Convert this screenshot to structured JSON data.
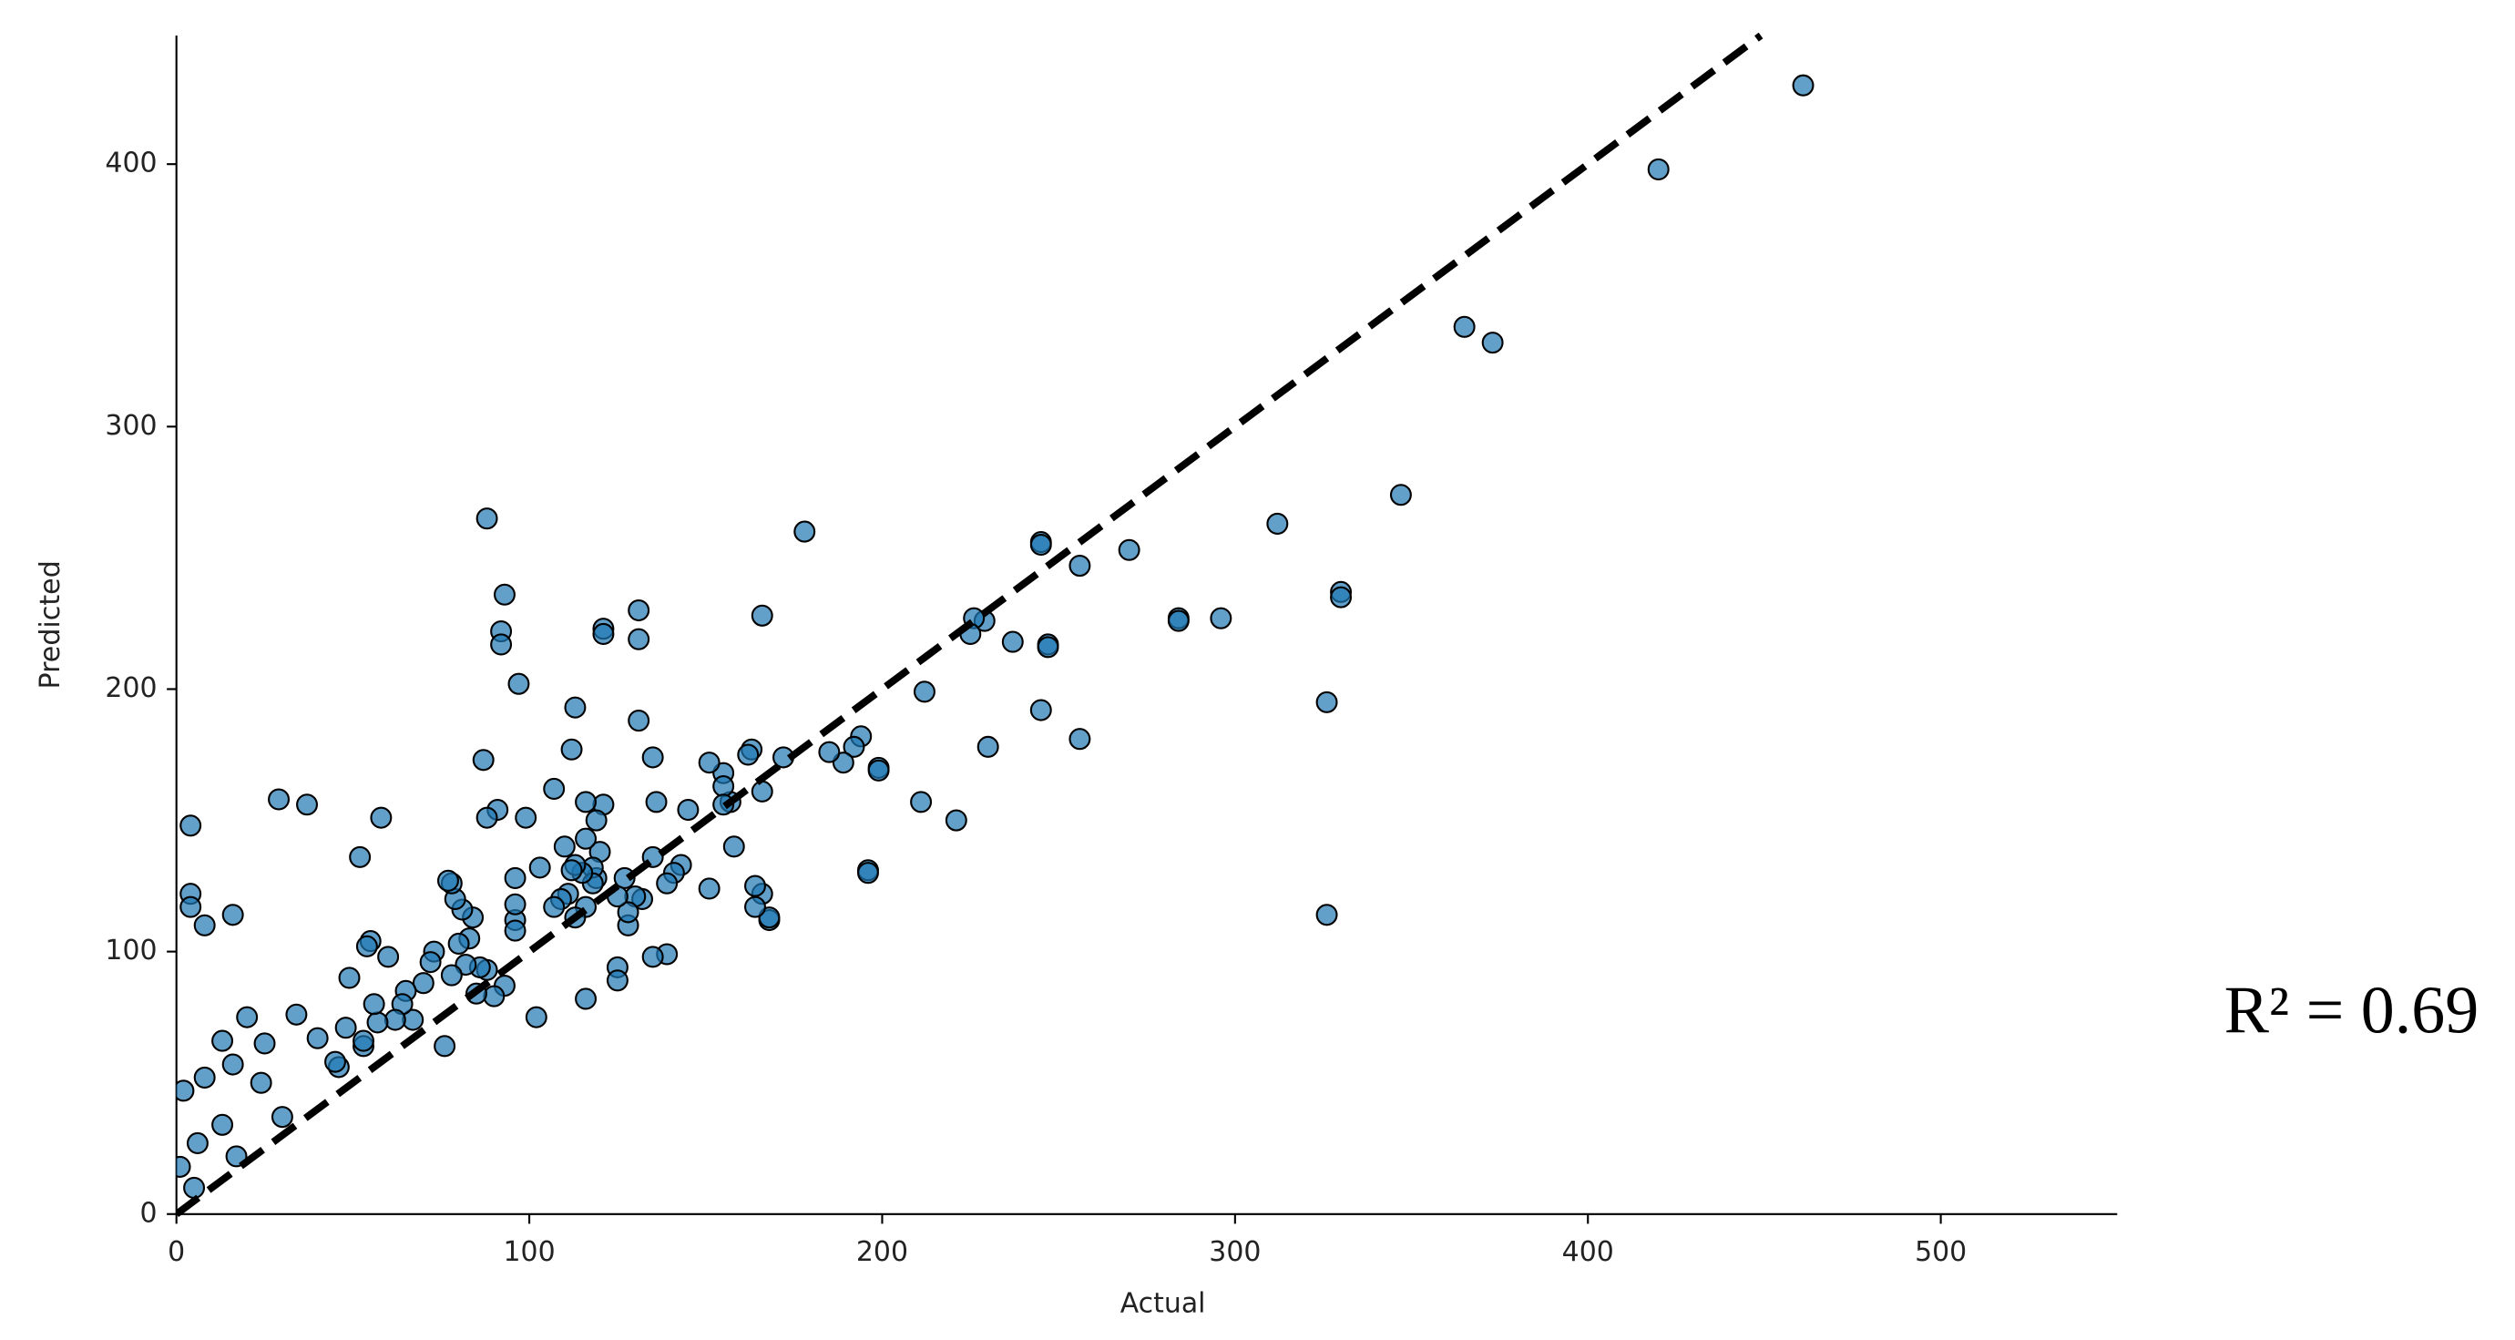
{
  "chart_data": {
    "type": "scatter",
    "x_label": "Actual",
    "y_label": "Predicted",
    "annotation": "R² = 0.69",
    "color": "#1f77b4",
    "edge_color": "#000000",
    "diagonal_line": true,
    "grid": false,
    "xlim": [
      0,
      550
    ],
    "ylim": [
      0,
      449
    ],
    "xticks": [
      0,
      100,
      200,
      300,
      400,
      500
    ],
    "yticks": [
      0,
      100,
      200,
      300,
      400
    ],
    "x": [
      461,
      420,
      365,
      373,
      347,
      312,
      330,
      330,
      326,
      326,
      296,
      284,
      284,
      270,
      256,
      256,
      245,
      245,
      247,
      247,
      245,
      237,
      229,
      226,
      225,
      230,
      212,
      211,
      221,
      199,
      199,
      196,
      196,
      194,
      192,
      189,
      185,
      178,
      172,
      166,
      166,
      166,
      168,
      168,
      164,
      164,
      163,
      162,
      158,
      157,
      155,
      155,
      155,
      151,
      151,
      145,
      143,
      141,
      139,
      139,
      135,
      135,
      136,
      135,
      131,
      131,
      131,
      132,
      130,
      128,
      128,
      127,
      125,
      125,
      125,
      121,
      121,
      121,
      120,
      119,
      119,
      118,
      118,
      116,
      116,
      116,
      115,
      116,
      113,
      112,
      113,
      112,
      113,
      111,
      110,
      109,
      107,
      107,
      103,
      102,
      99,
      97,
      96,
      96,
      96,
      96,
      93,
      92,
      92,
      93,
      91,
      90,
      88,
      87,
      88,
      88,
      86,
      85,
      84,
      83,
      82,
      81,
      80,
      79,
      78,
      77,
      78,
      76,
      73,
      72,
      70,
      67,
      65,
      64,
      62,
      60,
      58,
      57,
      56,
      55,
      54,
      53,
      53,
      52,
      49,
      48,
      46,
      45,
      40,
      37,
      34,
      30,
      29,
      25,
      24,
      20,
      17,
      16,
      16,
      13,
      13,
      8,
      8,
      6,
      4,
      4,
      4,
      5,
      2,
      1
    ],
    "values": [
      430,
      398,
      338,
      332,
      274,
      263,
      237,
      235,
      195,
      114,
      227,
      227,
      226,
      253,
      247,
      181,
      256,
      255,
      217,
      216,
      192,
      218,
      226,
      227,
      221,
      178,
      199,
      157,
      150,
      170,
      169,
      131,
      130,
      182,
      178,
      172,
      176,
      260,
      174,
      228,
      161,
      122,
      112,
      113,
      125,
      117,
      177,
      175,
      140,
      157,
      168,
      163,
      156,
      172,
      124,
      154,
      133,
      130,
      126,
      99,
      98,
      136,
      157,
      174,
      230,
      219,
      188,
      120,
      121,
      110,
      115,
      128,
      121,
      94,
      89,
      223,
      221,
      156,
      138,
      128,
      150,
      132,
      126,
      143,
      157,
      117,
      130,
      82,
      193,
      177,
      133,
      131,
      113,
      122,
      140,
      120,
      162,
      117,
      132,
      75,
      151,
      202,
      128,
      112,
      108,
      118,
      236,
      222,
      217,
      87,
      154,
      83,
      265,
      173,
      151,
      93,
      94,
      84,
      113,
      105,
      95,
      116,
      103,
      120,
      126,
      127,
      91,
      64,
      100,
      96,
      88,
      74,
      85,
      80,
      74,
      98,
      151,
      73,
      80,
      104,
      102,
      64,
      66,
      136,
      90,
      71,
      56,
      58,
      67,
      156,
      76,
      37,
      158,
      65,
      50,
      75,
      22,
      57,
      114,
      66,
      34,
      110,
      52,
      27,
      148,
      122,
      117,
      10,
      47,
      18
    ]
  }
}
